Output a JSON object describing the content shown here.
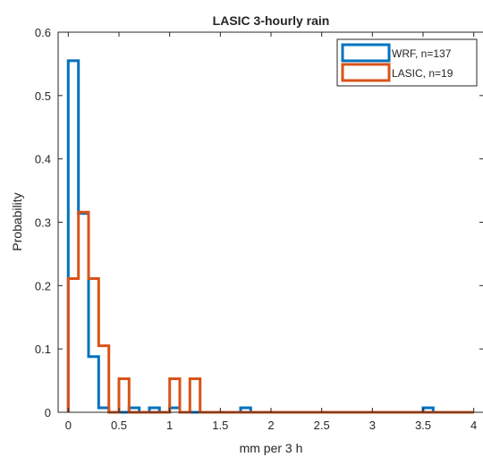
{
  "chart_data": {
    "type": "histogram",
    "title": "LASIC 3-hourly rain",
    "xlabel": "mm per 3 h",
    "ylabel": "Probability",
    "xlim": [
      -0.1,
      4.1
    ],
    "ylim": [
      0,
      0.6
    ],
    "xticks": [
      "0",
      "0.5",
      "1",
      "1.5",
      "2",
      "2.5",
      "3",
      "3.5",
      "4"
    ],
    "yticks": [
      "0",
      "0.1",
      "0.2",
      "0.3",
      "0.4",
      "0.5",
      "0.6"
    ],
    "legend_position": "top-right",
    "bin_width": 0.1,
    "bin_edges_start": 0,
    "bin_count": 40,
    "series": [
      {
        "name": "WRF, n=137",
        "color": "#0072BD",
        "values": [
          0.555,
          0.314,
          0.088,
          0.007,
          0,
          0,
          0.007,
          0,
          0.007,
          0,
          0.007,
          0,
          0,
          0,
          0,
          0,
          0,
          0.007,
          0,
          0,
          0,
          0,
          0,
          0,
          0,
          0,
          0,
          0,
          0,
          0,
          0,
          0,
          0,
          0,
          0,
          0.007,
          0,
          0,
          0,
          0
        ]
      },
      {
        "name": "LASIC, n=19",
        "color": "#D95319",
        "values": [
          0.211,
          0.316,
          0.211,
          0.105,
          0,
          0.053,
          0,
          0,
          0,
          0,
          0.053,
          0,
          0.053,
          0,
          0,
          0,
          0,
          0,
          0,
          0,
          0,
          0,
          0,
          0,
          0,
          0,
          0,
          0,
          0,
          0,
          0,
          0,
          0,
          0,
          0,
          0,
          0,
          0,
          0,
          0
        ]
      }
    ]
  }
}
